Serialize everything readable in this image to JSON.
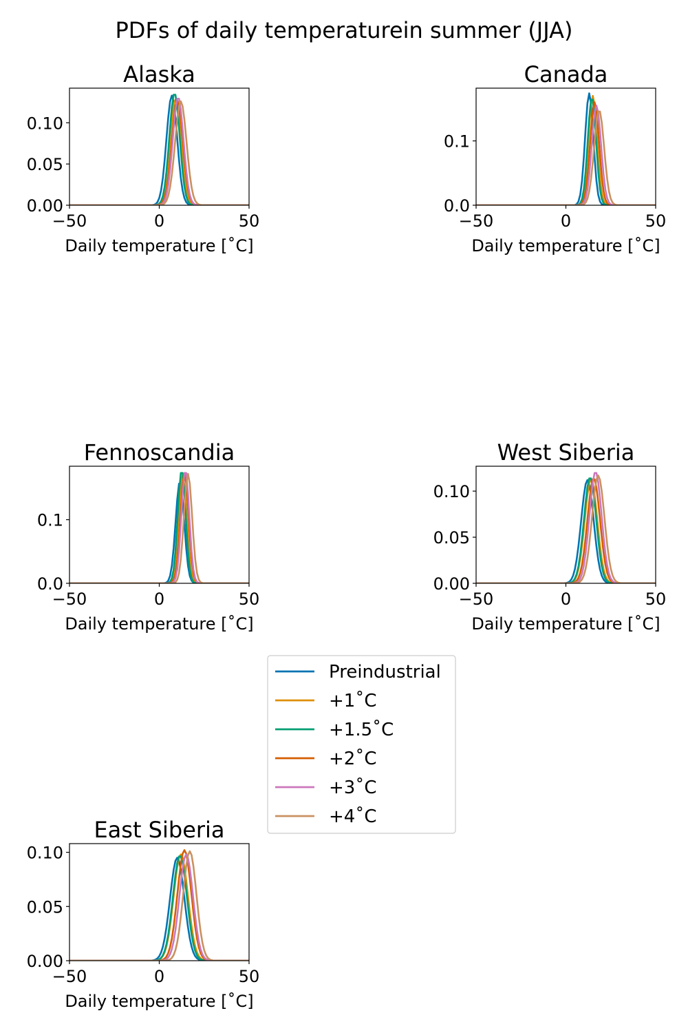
{
  "figure": {
    "title": "PDFs of daily temperaturein summer (JJA)"
  },
  "legend": {
    "placement": "center",
    "entries": [
      {
        "label": "Preindustrial",
        "color": "#0173b2"
      },
      {
        "label": "+1˚C",
        "color": "#de8f05"
      },
      {
        "label": "+1.5˚C",
        "color": "#029e73"
      },
      {
        "label": "+2˚C",
        "color": "#d55e00"
      },
      {
        "label": "+3˚C",
        "color": "#cc78bc"
      },
      {
        "label": "+4˚C",
        "color": "#ca9161"
      }
    ]
  },
  "chart_data": [
    {
      "type": "line",
      "title": "Alaska",
      "xlabel": "Daily temperature [˚C]",
      "ylabel": "",
      "xlim": [
        -50,
        50
      ],
      "ylim": [
        0,
        0.142
      ],
      "xticks": [
        -50,
        0,
        50
      ],
      "xtick_labels": [
        "−50",
        "0",
        "50"
      ],
      "yticks": [
        0,
        0.05,
        0.1
      ],
      "ytick_labels": [
        "0.00",
        "0.05",
        "0.10"
      ],
      "grid": false,
      "series": [
        {
          "name": "Preindustrial",
          "mean": 7,
          "sd": 3.0,
          "peak": 0.133
        },
        {
          "name": "+1˚C",
          "mean": 9,
          "sd": 3.1,
          "peak": 0.128
        },
        {
          "name": "+1.5˚C",
          "mean": 8.5,
          "sd": 2.9,
          "peak": 0.136
        },
        {
          "name": "+2˚C",
          "mean": 10,
          "sd": 3.1,
          "peak": 0.127
        },
        {
          "name": "+3˚C",
          "mean": 10.5,
          "sd": 3.0,
          "peak": 0.131
        },
        {
          "name": "+4˚C",
          "mean": 12,
          "sd": 3.2,
          "peak": 0.126
        }
      ]
    },
    {
      "type": "line",
      "title": "Canada",
      "xlabel": "Daily temperature [˚C]",
      "ylabel": "",
      "xlim": [
        -50,
        50
      ],
      "ylim": [
        0,
        0.182
      ],
      "xticks": [
        -50,
        0,
        50
      ],
      "xtick_labels": [
        "−50",
        "0",
        "50"
      ],
      "yticks": [
        0,
        0.1
      ],
      "ytick_labels": [
        "0.0",
        "0.1"
      ],
      "grid": false,
      "series": [
        {
          "name": "Preindustrial",
          "mean": 13,
          "sd": 2.3,
          "peak": 0.174
        },
        {
          "name": "+1˚C",
          "mean": 15,
          "sd": 2.4,
          "peak": 0.17
        },
        {
          "name": "+1.5˚C",
          "mean": 14.5,
          "sd": 2.3,
          "peak": 0.168
        },
        {
          "name": "+2˚C",
          "mean": 16,
          "sd": 2.5,
          "peak": 0.16
        },
        {
          "name": "+3˚C",
          "mean": 17,
          "sd": 2.6,
          "peak": 0.155
        },
        {
          "name": "+4˚C",
          "mean": 18.5,
          "sd": 2.8,
          "peak": 0.148
        }
      ]
    },
    {
      "type": "line",
      "title": "Fennoscandia",
      "xlabel": "Daily temperature [˚C]",
      "ylabel": "",
      "xlim": [
        -50,
        50
      ],
      "ylim": [
        0,
        0.184
      ],
      "xticks": [
        -50,
        0,
        50
      ],
      "xtick_labels": [
        "−50",
        "0",
        "50"
      ],
      "yticks": [
        0,
        0.1
      ],
      "ytick_labels": [
        "0.0",
        "0.1"
      ],
      "grid": false,
      "series": [
        {
          "name": "Preindustrial",
          "mean": 11.5,
          "sd": 2.4,
          "peak": 0.16
        },
        {
          "name": "+1˚C",
          "mean": 13,
          "sd": 2.3,
          "peak": 0.17
        },
        {
          "name": "+1.5˚C",
          "mean": 12.5,
          "sd": 2.2,
          "peak": 0.178
        },
        {
          "name": "+2˚C",
          "mean": 14,
          "sd": 2.3,
          "peak": 0.172
        },
        {
          "name": "+3˚C",
          "mean": 14.5,
          "sd": 2.2,
          "peak": 0.178
        },
        {
          "name": "+4˚C",
          "mean": 16,
          "sd": 2.3,
          "peak": 0.172
        }
      ]
    },
    {
      "type": "line",
      "title": "West Siberia",
      "xlabel": "Daily temperature [˚C]",
      "ylabel": "",
      "xlim": [
        -50,
        50
      ],
      "ylim": [
        0,
        0.127
      ],
      "xticks": [
        -50,
        0,
        50
      ],
      "xtick_labels": [
        "−50",
        "0",
        "50"
      ],
      "yticks": [
        0,
        0.05,
        0.1
      ],
      "ytick_labels": [
        "0.00",
        "0.05",
        "0.10"
      ],
      "grid": false,
      "series": [
        {
          "name": "Preindustrial",
          "mean": 12,
          "sd": 3.5,
          "peak": 0.112
        },
        {
          "name": "+1˚C",
          "mean": 14,
          "sd": 3.5,
          "peak": 0.113
        },
        {
          "name": "+1.5˚C",
          "mean": 13.5,
          "sd": 3.4,
          "peak": 0.115
        },
        {
          "name": "+2˚C",
          "mean": 15.5,
          "sd": 3.5,
          "peak": 0.114
        },
        {
          "name": "+3˚C",
          "mean": 16.5,
          "sd": 3.4,
          "peak": 0.121
        },
        {
          "name": "+4˚C",
          "mean": 18,
          "sd": 3.5,
          "peak": 0.117
        }
      ]
    },
    {
      "type": "line",
      "title": "East Siberia",
      "xlabel": "Daily temperature [˚C]",
      "ylabel": "",
      "xlim": [
        -50,
        50
      ],
      "ylim": [
        0,
        0.108
      ],
      "xticks": [
        -50,
        0,
        50
      ],
      "xtick_labels": [
        "−50",
        "0",
        "50"
      ],
      "yticks": [
        0,
        0.05,
        0.1
      ],
      "ytick_labels": [
        "0.00",
        "0.05",
        "0.10"
      ],
      "grid": false,
      "series": [
        {
          "name": "Preindustrial",
          "mean": 10,
          "sd": 4.0,
          "peak": 0.095
        },
        {
          "name": "+1˚C",
          "mean": 12,
          "sd": 4.0,
          "peak": 0.098
        },
        {
          "name": "+1.5˚C",
          "mean": 11.5,
          "sd": 3.9,
          "peak": 0.097
        },
        {
          "name": "+2˚C",
          "mean": 14,
          "sd": 3.9,
          "peak": 0.102
        },
        {
          "name": "+3˚C",
          "mean": 15,
          "sd": 3.8,
          "peak": 0.098
        },
        {
          "name": "+4˚C",
          "mean": 17,
          "sd": 3.7,
          "peak": 0.101
        }
      ]
    }
  ]
}
